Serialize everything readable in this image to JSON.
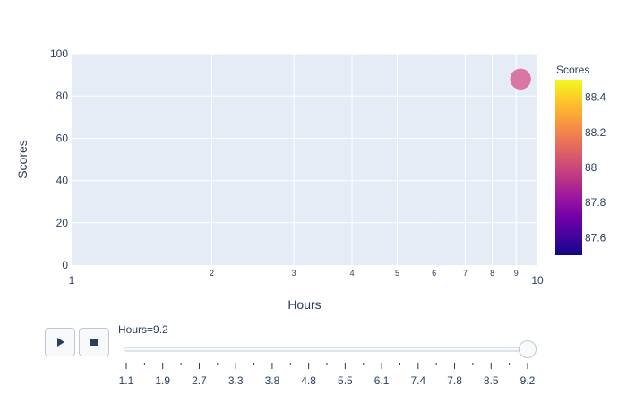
{
  "chart_data": {
    "type": "scatter",
    "title": "",
    "xlabel": "Hours",
    "ylabel": "Scores",
    "x_scale": "log",
    "xlim": [
      1,
      10
    ],
    "ylim": [
      0,
      100
    ],
    "x_ticks": [
      1,
      2,
      3,
      4,
      5,
      6,
      7,
      8,
      9,
      10
    ],
    "x_tick_labels": [
      "1",
      "2",
      "3",
      "4",
      "5",
      "6",
      "7",
      "8",
      "9",
      "10"
    ],
    "y_ticks": [
      0,
      20,
      40,
      60,
      80,
      100
    ],
    "y_tick_labels": [
      "0",
      "20",
      "40",
      "60",
      "80",
      "100"
    ],
    "grid": true,
    "points": [
      {
        "x": 9.2,
        "y": 88,
        "color_value": 88
      }
    ],
    "colorbar": {
      "title": "Scores",
      "range": [
        87.5,
        88.5
      ],
      "ticks": [
        87.6,
        87.8,
        88,
        88.2,
        88.4
      ],
      "tick_labels": [
        "87.6",
        "87.8",
        "88",
        "88.2",
        "88.4"
      ],
      "colorscale": [
        "#0d0887",
        "#46039f",
        "#7201a8",
        "#9c179e",
        "#bd3786",
        "#d8576b",
        "#ed7953",
        "#fb9f3a",
        "#fdca26",
        "#f0f921"
      ]
    },
    "legend": "none"
  },
  "animation": {
    "current_label": "Hours=9.2",
    "play_icon": "play-icon",
    "stop_icon": "stop-icon",
    "steps": [
      "1.1",
      "1.9",
      "2.7",
      "3.3",
      "3.8",
      "4.8",
      "5.5",
      "6.1",
      "7.4",
      "7.8",
      "8.5",
      "9.2"
    ],
    "active_step": "9.2"
  },
  "colors": {
    "plot_bg": "#e5ecf6",
    "grid": "#ffffff",
    "text": "#2a3f5f",
    "marker": "#d8709c"
  }
}
